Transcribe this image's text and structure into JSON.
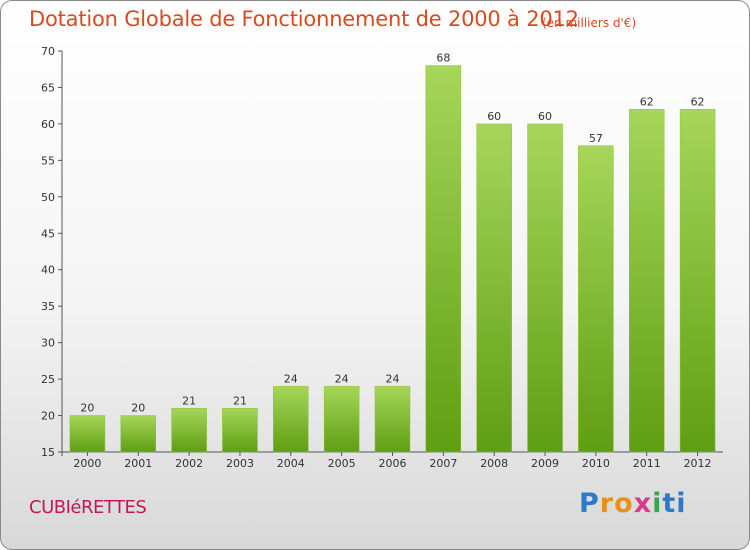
{
  "header": {
    "title": "Dotation Globale de Fonctionnement de 2000 à 2012",
    "unit": "(en milliers d'€)"
  },
  "footer": {
    "commune": "CUBIéRETTES",
    "brand_letters": [
      "P",
      "r",
      "o",
      "x",
      "i",
      "t",
      "i"
    ]
  },
  "colors": {
    "title": "#d94a1e",
    "commune": "#c2185b",
    "bar_light": "#a6d65a",
    "bar_dark": "#5f9e12"
  },
  "chart_data": {
    "type": "bar",
    "title": "Dotation Globale de Fonctionnement de 2000 à 2012",
    "ylabel": "",
    "xlabel": "",
    "categories": [
      "2000",
      "2001",
      "2002",
      "2003",
      "2004",
      "2005",
      "2006",
      "2007",
      "2008",
      "2009",
      "2010",
      "2011",
      "2012"
    ],
    "values": [
      20,
      20,
      21,
      21,
      24,
      24,
      24,
      68,
      60,
      60,
      57,
      62,
      62
    ],
    "ylim": [
      15,
      70
    ],
    "yticks": [
      15,
      20,
      25,
      30,
      35,
      40,
      45,
      50,
      55,
      60,
      65,
      70
    ],
    "grid": false,
    "data_labels": true
  }
}
